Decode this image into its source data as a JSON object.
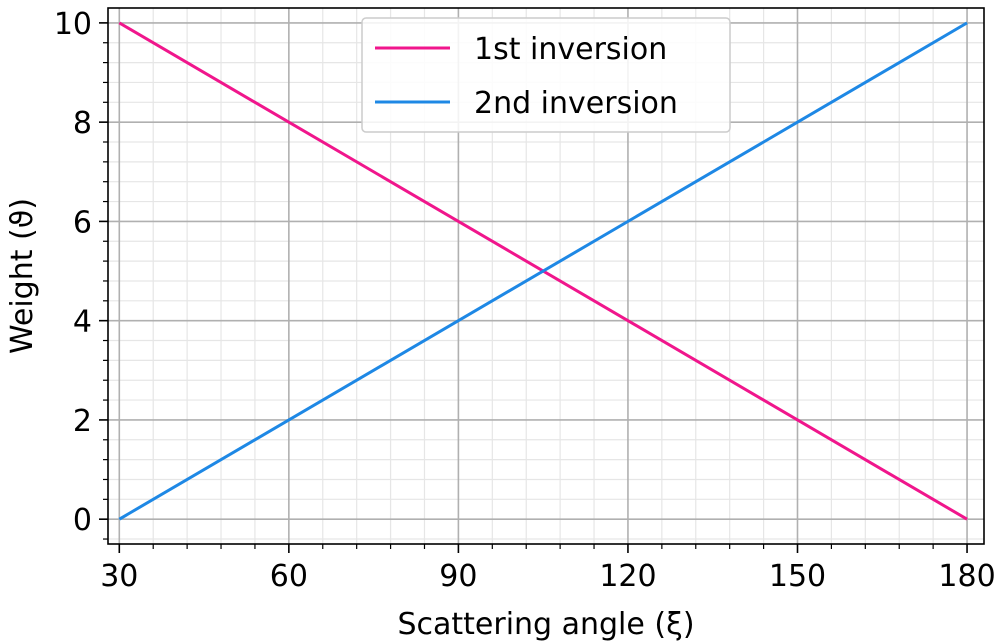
{
  "chart_data": {
    "type": "line",
    "xlabel": "Scattering angle (ξ)",
    "ylabel": "Weight (ϑ)",
    "xlim": [
      28,
      183
    ],
    "ylim": [
      -0.5,
      10.3
    ],
    "xticks": [
      30,
      60,
      90,
      120,
      150,
      180
    ],
    "yticks": [
      0,
      2,
      4,
      6,
      8,
      10
    ],
    "grid": "major and minor",
    "legend_position": "top-center",
    "series": [
      {
        "name": "1st inversion",
        "color": "#f0168c",
        "x": [
          30,
          180
        ],
        "y": [
          10,
          0
        ]
      },
      {
        "name": "2nd inversion",
        "color": "#1e88e5",
        "x": [
          30,
          180
        ],
        "y": [
          0,
          10
        ]
      }
    ]
  }
}
